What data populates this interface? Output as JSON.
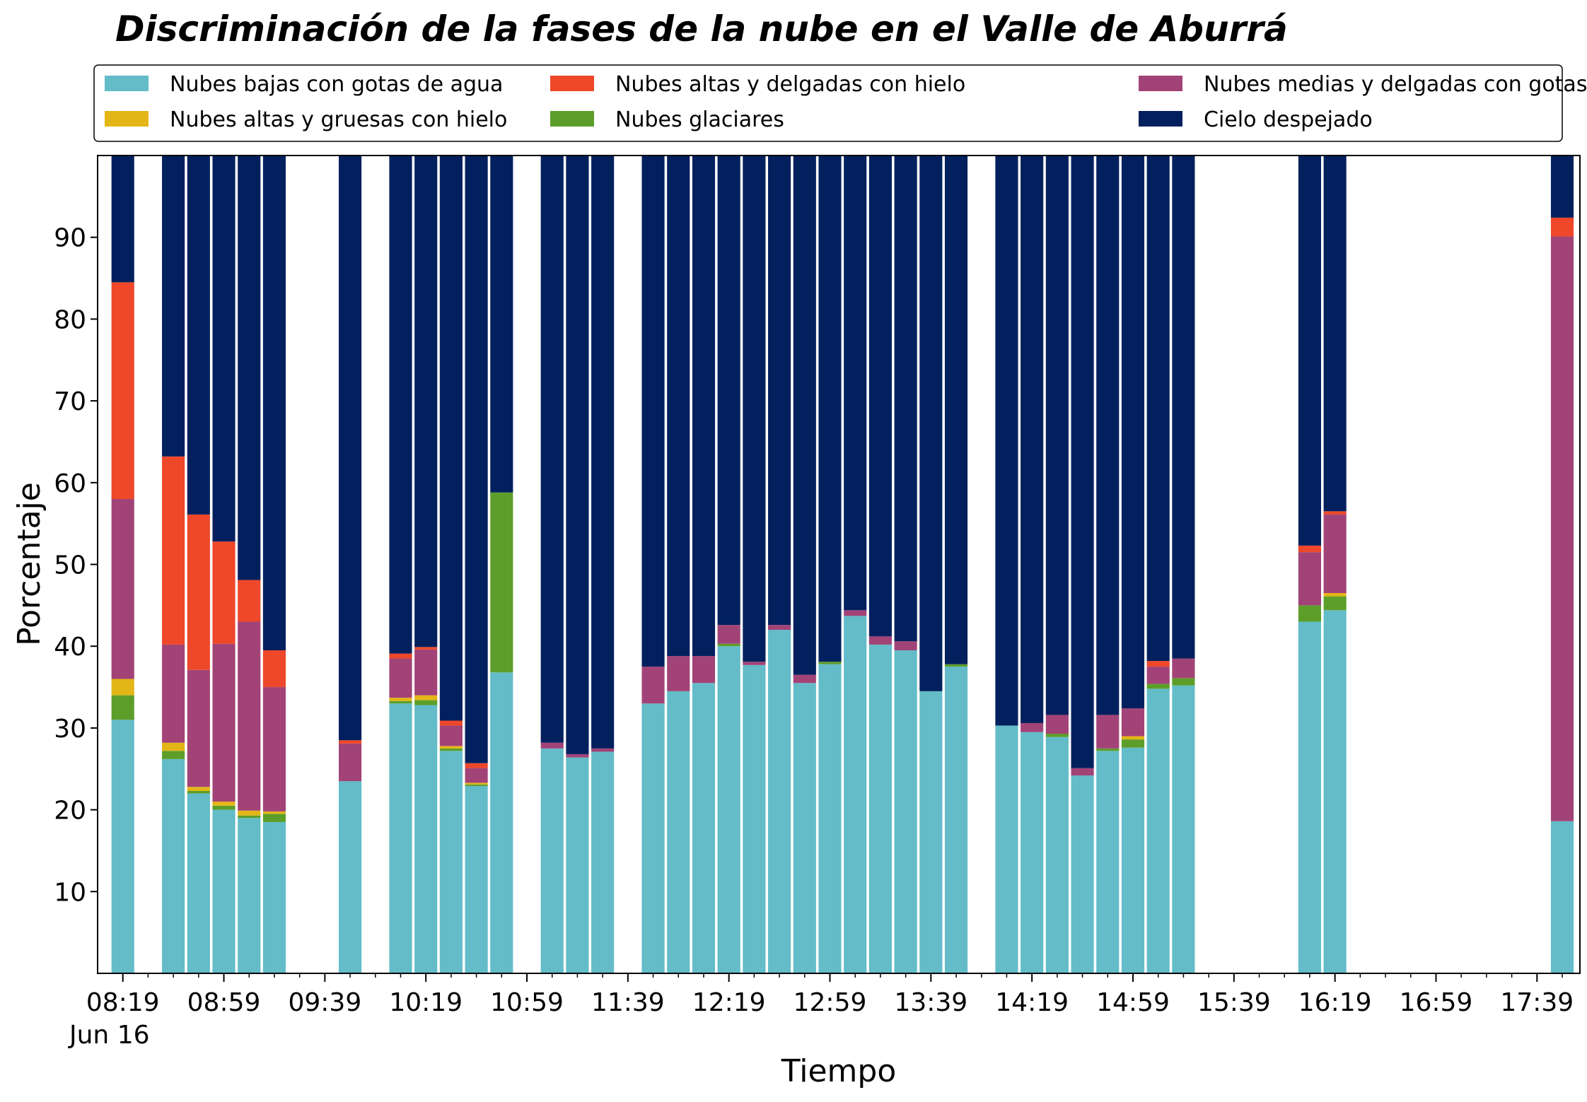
{
  "chart_data": {
    "type": "bar",
    "stacked": true,
    "title": "Discriminación de la fases de la nube en el Valle de Aburrá",
    "xlabel": "Tiempo",
    "ylabel": "Porcentaje",
    "date_label": "Jun 16",
    "ylim": [
      0,
      100
    ],
    "yticks": [
      10,
      20,
      30,
      40,
      50,
      60,
      70,
      80,
      90
    ],
    "x_range_minutes": [
      489,
      1076
    ],
    "bar_step_minutes": 10,
    "xticks": [
      {
        "label": "08:19",
        "minute": 499
      },
      {
        "label": "08:59",
        "minute": 539
      },
      {
        "label": "09:39",
        "minute": 579
      },
      {
        "label": "10:19",
        "minute": 619
      },
      {
        "label": "10:59",
        "minute": 659
      },
      {
        "label": "11:39",
        "minute": 699
      },
      {
        "label": "12:19",
        "minute": 739
      },
      {
        "label": "12:59",
        "minute": 779
      },
      {
        "label": "13:39",
        "minute": 819
      },
      {
        "label": "14:19",
        "minute": 859
      },
      {
        "label": "14:59",
        "minute": 899
      },
      {
        "label": "15:39",
        "minute": 939
      },
      {
        "label": "16:19",
        "minute": 979
      },
      {
        "label": "16:59",
        "minute": 1019
      },
      {
        "label": "17:39",
        "minute": 1059
      }
    ],
    "legend_position": "top",
    "series": [
      {
        "name": "Nubes bajas con gotas de agua",
        "color": "#63bcc8"
      },
      {
        "name": "Nubes glaciares",
        "color": "#5d9e2a"
      },
      {
        "name": "Nubes altas y gruesas con hielo",
        "color": "#e3b617"
      },
      {
        "name": "Nubes medias y delgadas con gotas de agua",
        "color": "#a24377"
      },
      {
        "name": "Nubes altas y delgadas con hielo",
        "color": "#ee472a"
      },
      {
        "name": "Cielo despejado",
        "color": "#03205e"
      }
    ],
    "legend_order": [
      0,
      2,
      4,
      1,
      3,
      5
    ],
    "bars": [
      {
        "time": "08:19",
        "values": [
          31.0,
          3.0,
          2.0,
          22.0,
          26.5,
          15.5
        ]
      },
      {
        "time": "08:39",
        "values": [
          26.2,
          1.0,
          1.0,
          12.0,
          23.0,
          36.8
        ]
      },
      {
        "time": "08:49",
        "values": [
          22.0,
          0.3,
          0.5,
          14.3,
          19.0,
          43.9
        ]
      },
      {
        "time": "08:59",
        "values": [
          20.0,
          0.5,
          0.5,
          19.3,
          12.5,
          47.2
        ]
      },
      {
        "time": "09:09",
        "values": [
          19.0,
          0.3,
          0.6,
          23.1,
          5.1,
          51.9
        ]
      },
      {
        "time": "09:19",
        "values": [
          18.5,
          1.0,
          0.3,
          15.2,
          4.5,
          60.5
        ]
      },
      {
        "time": "09:49",
        "values": [
          23.5,
          0.0,
          0.0,
          4.6,
          0.4,
          71.5
        ]
      },
      {
        "time": "10:09",
        "values": [
          33.0,
          0.3,
          0.4,
          4.8,
          0.6,
          60.9
        ]
      },
      {
        "time": "10:19",
        "values": [
          32.8,
          0.6,
          0.6,
          5.6,
          0.3,
          60.1
        ]
      },
      {
        "time": "10:29",
        "values": [
          27.2,
          0.3,
          0.3,
          2.5,
          0.6,
          69.1
        ]
      },
      {
        "time": "10:39",
        "values": [
          22.9,
          0.2,
          0.2,
          1.8,
          0.6,
          74.3
        ]
      },
      {
        "time": "10:49",
        "values": [
          36.8,
          22.0,
          0.0,
          0.0,
          0.0,
          41.2
        ]
      },
      {
        "time": "11:09",
        "values": [
          27.5,
          0.0,
          0.0,
          0.7,
          0.0,
          71.8
        ]
      },
      {
        "time": "11:19",
        "values": [
          26.4,
          0.0,
          0.0,
          0.4,
          0.0,
          73.2
        ]
      },
      {
        "time": "11:29",
        "values": [
          27.1,
          0.0,
          0.0,
          0.4,
          0.0,
          72.5
        ]
      },
      {
        "time": "11:49",
        "values": [
          33.0,
          0.0,
          0.0,
          4.5,
          0.0,
          62.5
        ]
      },
      {
        "time": "11:59",
        "values": [
          34.5,
          0.0,
          0.0,
          4.3,
          0.0,
          61.2
        ]
      },
      {
        "time": "12:09",
        "values": [
          35.5,
          0.0,
          0.0,
          3.3,
          0.0,
          61.2
        ]
      },
      {
        "time": "12:19",
        "values": [
          40.0,
          0.3,
          0.0,
          2.3,
          0.0,
          57.4
        ]
      },
      {
        "time": "12:29",
        "values": [
          37.7,
          0.0,
          0.0,
          0.4,
          0.0,
          61.9
        ]
      },
      {
        "time": "12:39",
        "values": [
          42.0,
          0.0,
          0.0,
          0.6,
          0.0,
          57.4
        ]
      },
      {
        "time": "12:49",
        "values": [
          35.5,
          0.0,
          0.0,
          1.0,
          0.0,
          63.5
        ]
      },
      {
        "time": "12:59",
        "values": [
          37.8,
          0.3,
          0.0,
          0.0,
          0.0,
          61.9
        ]
      },
      {
        "time": "13:09",
        "values": [
          43.7,
          0.0,
          0.0,
          0.7,
          0.0,
          55.6
        ]
      },
      {
        "time": "13:19",
        "values": [
          40.2,
          0.0,
          0.0,
          1.0,
          0.0,
          58.8
        ]
      },
      {
        "time": "13:29",
        "values": [
          39.5,
          0.0,
          0.0,
          1.1,
          0.0,
          59.4
        ]
      },
      {
        "time": "13:39",
        "values": [
          34.5,
          0.0,
          0.0,
          0.0,
          0.0,
          65.5
        ]
      },
      {
        "time": "13:49",
        "values": [
          37.5,
          0.3,
          0.0,
          0.0,
          0.0,
          62.2
        ]
      },
      {
        "time": "14:09",
        "values": [
          30.3,
          0.0,
          0.0,
          0.0,
          0.0,
          69.7
        ]
      },
      {
        "time": "14:19",
        "values": [
          29.5,
          0.0,
          0.0,
          1.1,
          0.0,
          69.4
        ]
      },
      {
        "time": "14:29",
        "values": [
          28.9,
          0.4,
          0.0,
          2.3,
          0.0,
          68.4
        ]
      },
      {
        "time": "14:39",
        "values": [
          24.2,
          0.0,
          0.0,
          0.9,
          0.0,
          74.9
        ]
      },
      {
        "time": "14:49",
        "values": [
          27.2,
          0.3,
          0.0,
          4.1,
          0.0,
          68.4
        ]
      },
      {
        "time": "14:59",
        "values": [
          27.6,
          1.0,
          0.4,
          3.4,
          0.0,
          67.6
        ]
      },
      {
        "time": "15:09",
        "values": [
          34.8,
          0.6,
          0.0,
          2.1,
          0.7,
          61.8
        ]
      },
      {
        "time": "15:19",
        "values": [
          35.2,
          0.9,
          0.0,
          2.4,
          0.0,
          61.5
        ]
      },
      {
        "time": "16:09",
        "values": [
          43.0,
          2.0,
          0.0,
          6.5,
          0.8,
          47.7
        ]
      },
      {
        "time": "16:19",
        "values": [
          44.4,
          1.7,
          0.4,
          9.6,
          0.4,
          43.5
        ]
      },
      {
        "time": "17:49",
        "values": [
          18.6,
          0.0,
          0.0,
          71.5,
          2.3,
          7.6
        ]
      }
    ]
  }
}
